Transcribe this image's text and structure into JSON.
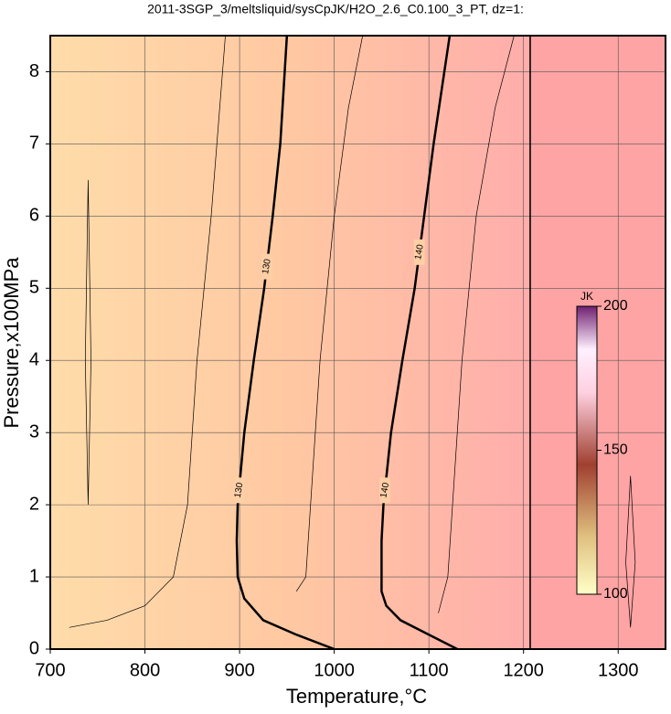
{
  "chart_data": {
    "type": "contour",
    "title": "2011-3SGP_3/meltsliquid/sysCpJK/H2O_2.6_C0.100_3_PT, dz=1:",
    "x_label": "Temperature,°C",
    "y_label": "Pressure,x100MPa",
    "xlim": [
      700,
      1350
    ],
    "xticks": [
      700,
      800,
      900,
      1000,
      1100,
      1200,
      1300
    ],
    "ylim": [
      0,
      8.5
    ],
    "yticks": [
      0,
      1,
      2,
      3,
      4,
      5,
      6,
      7,
      8
    ],
    "grid": true,
    "colorbar_label": "JK",
    "clim": [
      100,
      200
    ],
    "cticks": [
      100,
      150,
      200
    ],
    "contours": [
      {
        "level": 130,
        "x": [
          1000,
          960,
          925,
          905,
          898,
          897,
          898,
          905,
          915,
          926,
          935,
          943,
          950
        ],
        "y": [
          0,
          0.2,
          0.4,
          0.7,
          1,
          1.5,
          2,
          3,
          4,
          5,
          6,
          7,
          8.5
        ],
        "label_y": [
          2.2,
          5.3
        ]
      },
      {
        "level": 140,
        "x": [
          1130,
          1100,
          1070,
          1055,
          1050,
          1050,
          1052,
          1060,
          1072,
          1085,
          1095,
          1105,
          1122
        ],
        "y": [
          0,
          0.2,
          0.4,
          0.6,
          0.8,
          1.5,
          2,
          3,
          4,
          5,
          6,
          7,
          8.5
        ],
        "label_y": [
          2.2,
          5.5
        ]
      },
      {
        "x": [
          720,
          760,
          800,
          830,
          845,
          855,
          870,
          885
        ],
        "y": [
          0.3,
          0.4,
          0.6,
          1,
          2,
          4,
          6,
          8.5
        ]
      },
      {
        "x": [
          960,
          970,
          975,
          985,
          1000,
          1015,
          1030
        ],
        "y": [
          0.8,
          1,
          2,
          4,
          6,
          7.5,
          8.5
        ]
      },
      {
        "x": [
          1110,
          1120,
          1125,
          1135,
          1150,
          1170,
          1190
        ],
        "y": [
          0.5,
          1,
          2,
          4,
          6,
          7.5,
          8.5
        ]
      },
      {
        "x": [
          740,
          743,
          740,
          737,
          740
        ],
        "y": [
          2,
          4,
          6.5,
          4,
          2
        ]
      },
      {
        "x": [
          1313,
          1318,
          1313,
          1308,
          1313
        ],
        "y": [
          0.3,
          1.2,
          2.4,
          1.2,
          0.3
        ]
      },
      {
        "x": [
          1207,
          1207
        ],
        "y": [
          0,
          8.5
        ]
      }
    ]
  }
}
